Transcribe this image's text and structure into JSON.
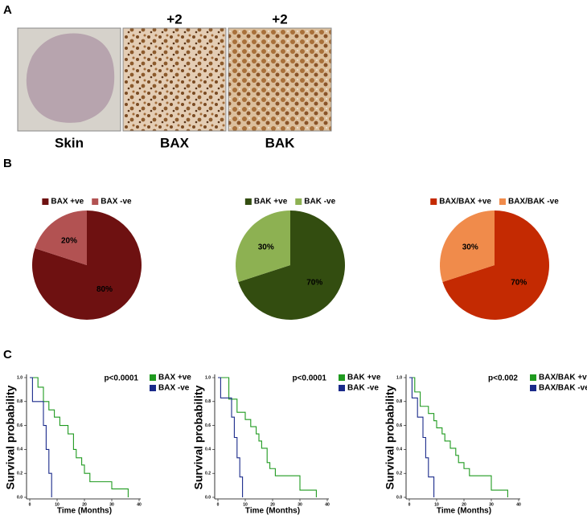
{
  "panels": {
    "labels": [
      "A",
      "B",
      "C"
    ]
  },
  "images": [
    {
      "label": "Skin"
    },
    {
      "label": "BAX",
      "score": "+2"
    },
    {
      "label": "BAK",
      "score": "+2"
    }
  ],
  "chart_data": [
    {
      "type": "pie",
      "categories": [
        "BAX +ve",
        "BAX -ve"
      ],
      "values": [
        80,
        20
      ],
      "value_labels": [
        "80%",
        "20%"
      ],
      "colors": [
        "#6e1111",
        "#b25252"
      ],
      "legend": "top"
    },
    {
      "type": "pie",
      "categories": [
        "BAK +ve",
        "BAK -ve"
      ],
      "values": [
        70,
        30
      ],
      "value_labels": [
        "70%",
        "30%"
      ],
      "colors": [
        "#334d10",
        "#8db152"
      ],
      "legend": "top"
    },
    {
      "type": "pie",
      "categories": [
        "BAX/BAX +ve",
        "BAX/BAK -ve"
      ],
      "values": [
        70,
        30
      ],
      "value_labels": [
        "70%",
        "30%"
      ],
      "colors": [
        "#c42a02",
        "#f08b4b"
      ],
      "legend": "top"
    },
    {
      "type": "line",
      "step": true,
      "annotation": "p<0.0001",
      "xlabel": "Time (Months)",
      "ylabel": "Survival probability",
      "xlim": [
        0,
        40
      ],
      "xticks": [
        0,
        10,
        20,
        30,
        40
      ],
      "ylim": [
        0,
        1
      ],
      "yticks": [
        {
          "value": 0,
          "label": "0.0"
        },
        0.2,
        0.4,
        0.6,
        0.8,
        {
          "value": 1,
          "label": "1.0"
        }
      ],
      "legend": "right",
      "series": [
        {
          "name": "BAX +ve",
          "color": "#1f9a1f",
          "x": [
            0,
            3,
            5,
            7,
            9,
            11,
            14,
            16,
            17,
            19,
            20,
            22,
            30,
            36
          ],
          "values": [
            1,
            0.92,
            0.8,
            0.73,
            0.67,
            0.6,
            0.53,
            0.4,
            0.33,
            0.27,
            0.2,
            0.13,
            0.07,
            0
          ]
        },
        {
          "name": "BAX -ve",
          "color": "#1a2a8a",
          "x": [
            0,
            1,
            5,
            6,
            7,
            8
          ],
          "values": [
            1,
            0.8,
            0.6,
            0.4,
            0.2,
            0
          ]
        }
      ]
    },
    {
      "type": "line",
      "step": true,
      "annotation": "p<0.0001",
      "xlabel": "Time (Months)",
      "ylabel": "Survival probability",
      "xlim": [
        0,
        40
      ],
      "xticks": [
        0,
        10,
        20,
        30,
        40
      ],
      "ylim": [
        0,
        1
      ],
      "yticks": [
        {
          "value": 0,
          "label": "0.0"
        },
        0.2,
        0.4,
        0.6,
        0.8,
        {
          "value": 1,
          "label": "1.0"
        }
      ],
      "legend": "right",
      "series": [
        {
          "name": "BAK +ve",
          "color": "#1f9a1f",
          "x": [
            0,
            4,
            7,
            10,
            12,
            14,
            15,
            16,
            18,
            19,
            21,
            30,
            36
          ],
          "values": [
            1,
            0.82,
            0.71,
            0.65,
            0.59,
            0.53,
            0.47,
            0.41,
            0.29,
            0.24,
            0.18,
            0.06,
            0
          ]
        },
        {
          "name": "BAK -ve",
          "color": "#1a2a8a",
          "x": [
            0,
            1,
            5,
            6,
            7,
            8,
            9
          ],
          "values": [
            1,
            0.83,
            0.67,
            0.5,
            0.33,
            0.17,
            0
          ]
        }
      ]
    },
    {
      "type": "line",
      "step": true,
      "annotation": "p<0.002",
      "xlabel": "Time (Months)",
      "ylabel": "Survival probability",
      "xlim": [
        0,
        40
      ],
      "xticks": [
        0,
        10,
        20,
        30,
        40
      ],
      "ylim": [
        0,
        1
      ],
      "yticks": [
        {
          "value": 0,
          "label": "0.0"
        },
        0.2,
        0.4,
        0.6,
        0.8,
        {
          "value": 1,
          "label": "1.0"
        }
      ],
      "legend": "right",
      "series": [
        {
          "name": "BAX/BAK +ve",
          "color": "#1f9a1f",
          "x": [
            0,
            2,
            4,
            7,
            9,
            10,
            12,
            13,
            15,
            17,
            18,
            20,
            22,
            30,
            36
          ],
          "values": [
            1,
            0.88,
            0.76,
            0.7,
            0.64,
            0.58,
            0.53,
            0.47,
            0.41,
            0.35,
            0.29,
            0.24,
            0.18,
            0.06,
            0
          ]
        },
        {
          "name": "BAX/BAK -ve",
          "color": "#1a2a8a",
          "x": [
            0,
            1,
            3,
            5,
            6,
            7,
            9
          ],
          "values": [
            1,
            0.83,
            0.67,
            0.5,
            0.33,
            0.17,
            0
          ]
        }
      ]
    }
  ]
}
